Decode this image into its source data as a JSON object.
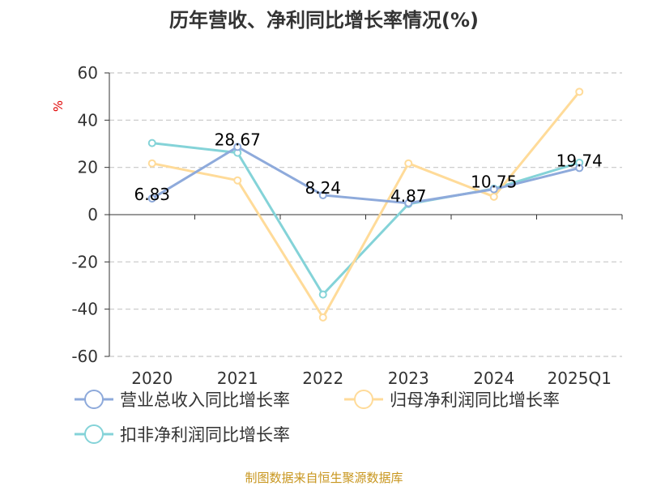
{
  "chart_data": {
    "type": "line",
    "title": "历年营收、净利同比增长率情况(%)",
    "ylabel": "%",
    "xlabel": "",
    "ylim": [
      -60,
      60
    ],
    "yticks": [
      60,
      40,
      20,
      0,
      -20,
      -40,
      -60
    ],
    "grid": true,
    "legend_placement": "bottom",
    "categories": [
      "2020",
      "2021",
      "2022",
      "2023",
      "2024",
      "2025Q1"
    ],
    "series": [
      {
        "name": "营业总收入同比增长率",
        "color": "#8eaadb",
        "values": [
          6.83,
          28.67,
          8.24,
          4.87,
          10.75,
          19.74
        ],
        "labels": [
          "6.83",
          "28.67",
          "8.24",
          "4.87",
          "10.75",
          "19.74"
        ]
      },
      {
        "name": "归母净利润同比增长率",
        "color": "#ffdb99",
        "values": [
          21.7,
          14.5,
          -43.5,
          21.7,
          7.6,
          52.0
        ]
      },
      {
        "name": "扣非净利润同比增长率",
        "color": "#84d3d8",
        "values": [
          30.3,
          26.2,
          -33.8,
          4.5,
          11.0,
          22.0
        ]
      }
    ]
  },
  "footer": {
    "source": "制图数据来自恒生聚源数据库"
  },
  "colors": {
    "title": "#333333",
    "axis": "#333333",
    "grid": "#cccccc",
    "ylabel": "#e00000",
    "source": "#c8961e"
  }
}
